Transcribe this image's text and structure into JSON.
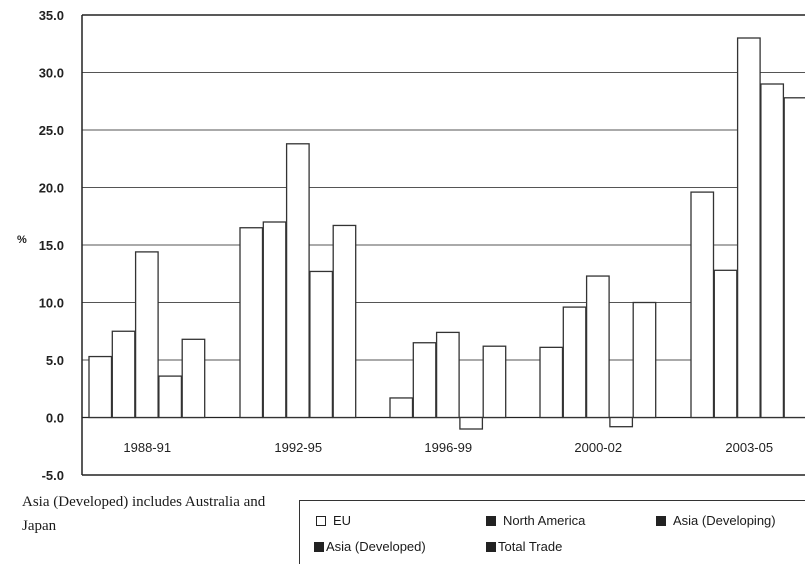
{
  "chart_data": {
    "type": "bar",
    "title": "",
    "xlabel": "",
    "ylabel": "%",
    "ylim": [
      -5,
      35
    ],
    "yticks": [
      "35.0",
      "30.0",
      "25.0",
      "20.0",
      "15.0",
      "10.0",
      "5.0",
      "0.0",
      "-5.0"
    ],
    "ytick_values": [
      35,
      30,
      25,
      20,
      15,
      10,
      5,
      0,
      -5
    ],
    "grid": true,
    "legend_placement": "bottom",
    "categories": [
      "1988-91",
      "1992-95",
      "1996-99",
      "2000-02",
      "2003-05"
    ],
    "series": [
      {
        "name": "EU",
        "values": [
          5.3,
          16.5,
          1.7,
          6.1,
          19.6
        ]
      },
      {
        "name": "North America",
        "values": [
          7.5,
          17.0,
          6.5,
          9.6,
          12.8
        ]
      },
      {
        "name": "Asia (Developing)",
        "values": [
          14.4,
          23.8,
          7.4,
          12.3,
          33.0
        ]
      },
      {
        "name": "Asia (Developed)",
        "values": [
          3.6,
          12.7,
          -1.0,
          -0.8,
          29.0
        ]
      },
      {
        "name": "Total Trade",
        "values": [
          6.8,
          16.7,
          6.2,
          10.0,
          27.8
        ]
      }
    ],
    "colors": {
      "bar_fill": "#ffffff",
      "bar_stroke": "#333333",
      "grid": "#555555",
      "axis": "#222222"
    }
  },
  "note": "Asia (Developed) includes Australia and Japan",
  "legend": {
    "items": [
      {
        "label": "EU",
        "swatch": "#ffffff"
      },
      {
        "label": "North America",
        "swatch": "#222222"
      },
      {
        "label": "Asia (Developing)",
        "swatch": "#222222"
      },
      {
        "label": "Asia (Developed)",
        "swatch": "#222222"
      },
      {
        "label": "Total Trade",
        "swatch": "#222222"
      }
    ]
  }
}
